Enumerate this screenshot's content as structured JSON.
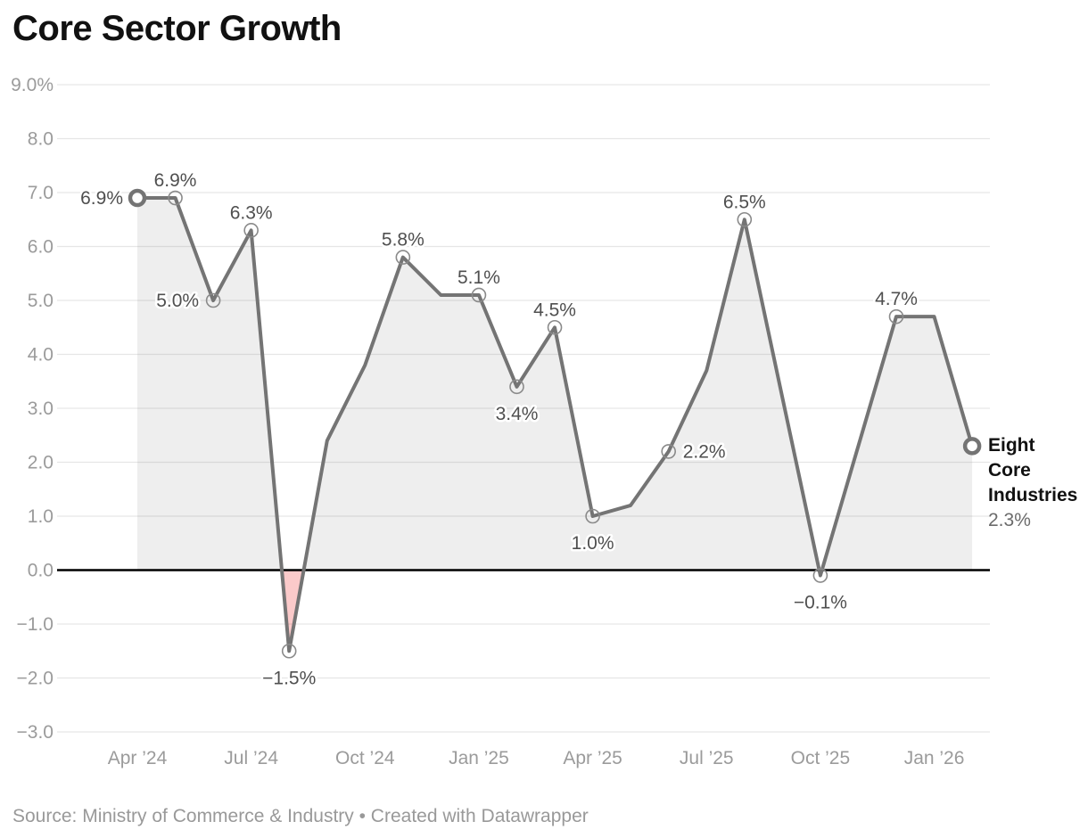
{
  "title": "Core Sector Growth",
  "footer": "Source: Ministry of Commerce & Industry • Created with Datawrapper",
  "annotation": {
    "series_label": "Eight Core Industries",
    "value_label": "2.3%"
  },
  "chart_data": {
    "type": "line",
    "title": "Core Sector Growth",
    "series_name": "Eight Core Industries",
    "x": [
      "Apr ’24",
      "May ’24",
      "Jun ’24",
      "Jul ’24",
      "Aug ’24",
      "Sep ’24",
      "Oct ’24",
      "Nov ’24",
      "Dec ’24",
      "Jan ’25",
      "Feb ’25",
      "Mar ’25",
      "Apr ’25",
      "May ’25",
      "Jun ’25",
      "Jul ’25",
      "Aug ’25",
      "Sep ’25",
      "Oct ’25",
      "Nov ’25",
      "Dec ’25",
      "Jan ’26",
      "Feb ’26"
    ],
    "values": [
      6.9,
      6.9,
      5.0,
      6.3,
      -1.5,
      2.4,
      3.8,
      5.8,
      5.1,
      5.1,
      3.4,
      4.5,
      1.0,
      1.2,
      2.2,
      3.7,
      6.5,
      3.2,
      -0.1,
      2.3,
      4.7,
      4.7,
      2.3
    ],
    "ylim": [
      -3,
      9
    ],
    "grid": true,
    "legend_position": "right-end-annotation",
    "y_ticks": [
      {
        "label": "9.0%",
        "value": 9
      },
      {
        "label": "8.0",
        "value": 8
      },
      {
        "label": "7.0",
        "value": 7
      },
      {
        "label": "6.0",
        "value": 6
      },
      {
        "label": "5.0",
        "value": 5
      },
      {
        "label": "4.0",
        "value": 4
      },
      {
        "label": "3.0",
        "value": 3
      },
      {
        "label": "2.0",
        "value": 2
      },
      {
        "label": "1.0",
        "value": 1
      },
      {
        "label": "0.0",
        "value": 0
      },
      {
        "label": "−1.0",
        "value": -1
      },
      {
        "label": "−2.0",
        "value": -2
      },
      {
        "label": "−3.0",
        "value": -3
      }
    ],
    "x_ticks": [
      {
        "label": "Apr ’24",
        "month": 0
      },
      {
        "label": "Jul ’24",
        "month": 3
      },
      {
        "label": "Oct ’24",
        "month": 6
      },
      {
        "label": "Jan ’25",
        "month": 9
      },
      {
        "label": "Apr ’25",
        "month": 12
      },
      {
        "label": "Jul ’25",
        "month": 15
      },
      {
        "label": "Oct ’25",
        "month": 18
      },
      {
        "label": "Jan ’26",
        "month": 21
      }
    ],
    "labeled_points": [
      {
        "index": 0,
        "text": "6.9%",
        "placement": "left",
        "marker": "big"
      },
      {
        "index": 1,
        "text": "6.9%",
        "placement": "above",
        "marker": "small"
      },
      {
        "index": 2,
        "text": "5.0%",
        "placement": "left",
        "marker": "small"
      },
      {
        "index": 3,
        "text": "6.3%",
        "placement": "above",
        "marker": "small"
      },
      {
        "index": 4,
        "text": "−1.5%",
        "placement": "below",
        "marker": "small"
      },
      {
        "index": 7,
        "text": "5.8%",
        "placement": "above",
        "marker": "small"
      },
      {
        "index": 9,
        "text": "5.1%",
        "placement": "above",
        "marker": "small"
      },
      {
        "index": 10,
        "text": "3.4%",
        "placement": "below",
        "marker": "small"
      },
      {
        "index": 11,
        "text": "4.5%",
        "placement": "above",
        "marker": "small"
      },
      {
        "index": 12,
        "text": "1.0%",
        "placement": "below",
        "marker": "small"
      },
      {
        "index": 14,
        "text": "2.2%",
        "placement": "right",
        "marker": "small"
      },
      {
        "index": 16,
        "text": "6.5%",
        "placement": "above",
        "marker": "small"
      },
      {
        "index": 18,
        "text": "−0.1%",
        "placement": "below",
        "marker": "small"
      },
      {
        "index": 20,
        "text": "4.7%",
        "placement": "above",
        "marker": "small"
      },
      {
        "index": 22,
        "text": "2.3%",
        "placement": "annotation",
        "marker": "big"
      }
    ],
    "colors": {
      "line": "#747474",
      "area_positive": "#78787821",
      "area_negative": "#f150504d",
      "zero_line": "#000000",
      "grid": "#e6e6e6",
      "axis_label": "#9b9b9b",
      "data_label": "#4f4f4f",
      "marker_stroke": "#8a8a8a",
      "annotation_value": "#6b6b6b"
    }
  }
}
